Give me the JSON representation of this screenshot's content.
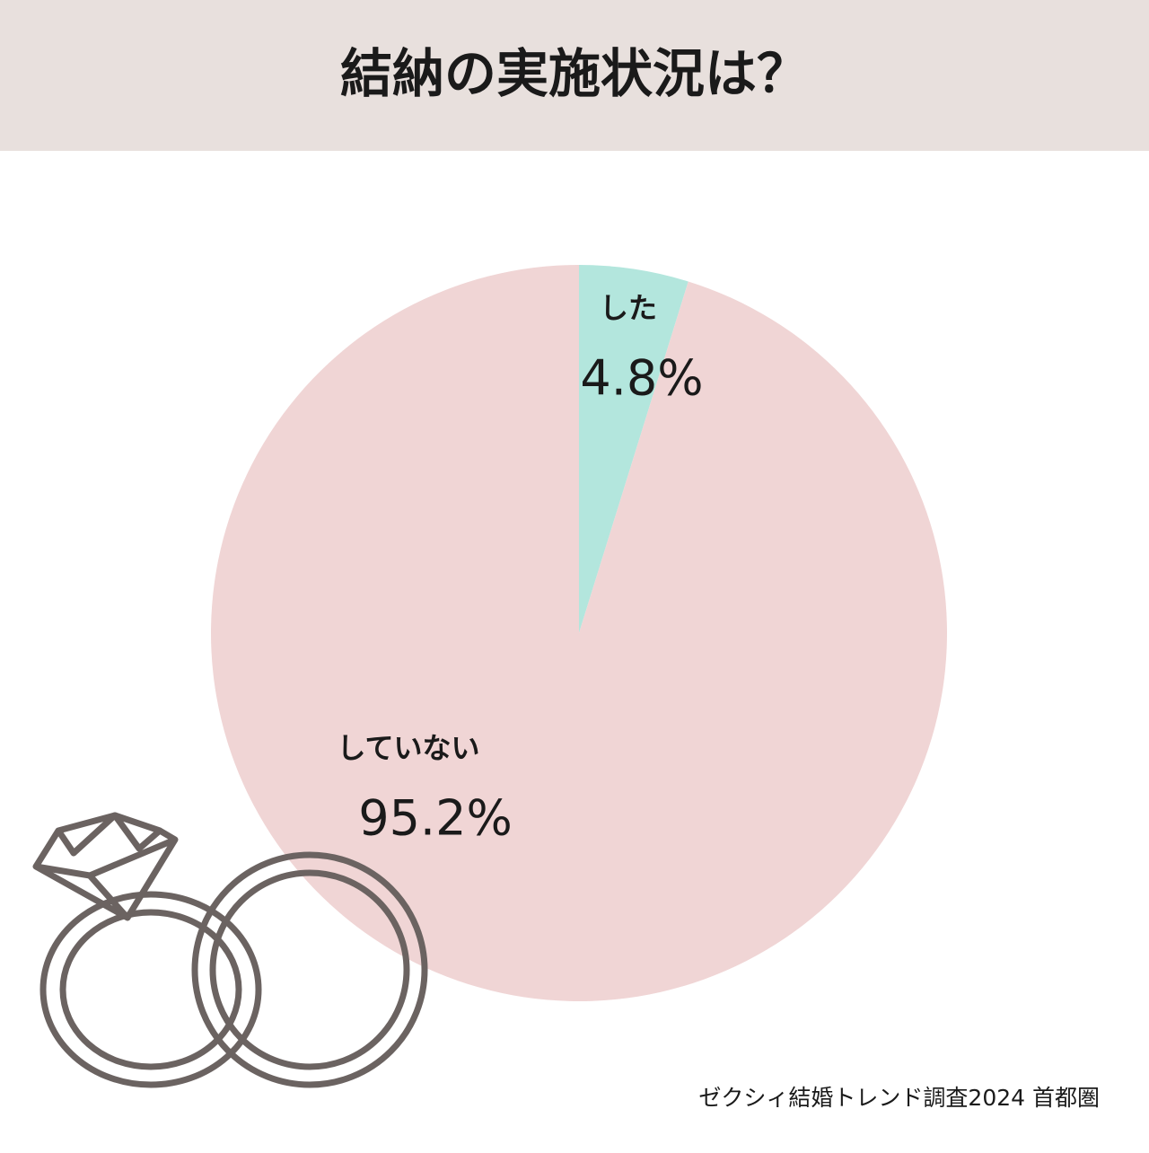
{
  "chart_data": {
    "type": "pie",
    "title": "結納の実施状況は？",
    "categories": [
      "した",
      "していない"
    ],
    "values": [
      4.8,
      95.2
    ],
    "value_labels": [
      "4.8%",
      "95.2%"
    ],
    "colors": [
      "#b3e6dd",
      "#f0d5d5"
    ],
    "source": "ゼクシィ結婚トレンド調査2024 首都圏"
  }
}
